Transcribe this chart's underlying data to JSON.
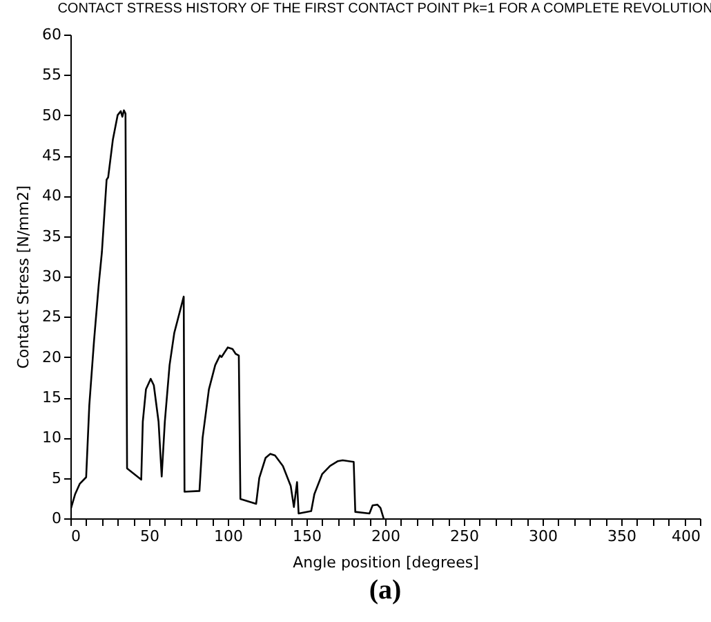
{
  "chart_data": {
    "type": "line",
    "title": "CONTACT STRESS HISTORY OF THE FIRST CONTACT POINT Pk=1 FOR A COMPLETE REVOLUTION",
    "xlabel": "Angle position [degrees]",
    "ylabel": "Contact Stress [N/mm2]",
    "annotations": [
      "(a)"
    ],
    "x": [
      0,
      3,
      6,
      10,
      12,
      15,
      18,
      20,
      23,
      24,
      27,
      30,
      32,
      33,
      34,
      35,
      36,
      45,
      46,
      48,
      51,
      53,
      56,
      58,
      60,
      63,
      66,
      70,
      72,
      72.5,
      82,
      84,
      88,
      92,
      95,
      96,
      100,
      103,
      105,
      107,
      108,
      118,
      120,
      124,
      127,
      130,
      135,
      140,
      142,
      144,
      145,
      153,
      155,
      160,
      165,
      170,
      173,
      180,
      181,
      190,
      192,
      195,
      197,
      199
    ],
    "series": [
      {
        "color": "#000000",
        "values": [
          1,
          3,
          4.3,
          5.1,
          14,
          22,
          29,
          33,
          42,
          42.3,
          47,
          50,
          50.5,
          49.8,
          50.6,
          50.2,
          6.2,
          4.8,
          12,
          16,
          17.3,
          16.5,
          12,
          5.2,
          12,
          19,
          23,
          26,
          27.5,
          3.3,
          3.4,
          10,
          16,
          19,
          20.2,
          20,
          21.2,
          21,
          20.4,
          20.2,
          2.4,
          1.8,
          5,
          7.5,
          8,
          7.8,
          6.5,
          4,
          1.4,
          4.5,
          0.6,
          0.9,
          3,
          5.5,
          6.5,
          7.1,
          7.2,
          7,
          0.8,
          0.6,
          1.6,
          1.7,
          1.3,
          0
        ]
      }
    ],
    "xlim": [
      0,
      400
    ],
    "ylim": [
      0,
      60
    ],
    "xticks": [
      0,
      {
        "value": 10,
        "label": null
      },
      {
        "value": 20,
        "label": null
      },
      {
        "value": 30,
        "label": null
      },
      {
        "value": 40,
        "label": null
      },
      50,
      {
        "value": 60,
        "label": null
      },
      {
        "value": 70,
        "label": null
      },
      {
        "value": 80,
        "label": null
      },
      {
        "value": 90,
        "label": null
      },
      100,
      {
        "value": 110,
        "label": null
      },
      {
        "value": 120,
        "label": null
      },
      {
        "value": 130,
        "label": null
      },
      {
        "value": 140,
        "label": null
      },
      150,
      {
        "value": 160,
        "label": null
      },
      {
        "value": 170,
        "label": null
      },
      {
        "value": 180,
        "label": null
      },
      {
        "value": 190,
        "label": null
      },
      200,
      {
        "value": 210,
        "label": null
      },
      {
        "value": 220,
        "label": null
      },
      {
        "value": 230,
        "label": null
      },
      {
        "value": 240,
        "label": null
      },
      250,
      {
        "value": 260,
        "label": null
      },
      {
        "value": 270,
        "label": null
      },
      {
        "value": 280,
        "label": null
      },
      {
        "value": 290,
        "label": null
      },
      300,
      {
        "value": 310,
        "label": null
      },
      {
        "value": 320,
        "label": null
      },
      {
        "value": 330,
        "label": null
      },
      {
        "value": 340,
        "label": null
      },
      350,
      {
        "value": 360,
        "label": null
      },
      {
        "value": 370,
        "label": null
      },
      {
        "value": 380,
        "label": null
      },
      {
        "value": 390,
        "label": null
      },
      400
    ],
    "yticks": [
      0,
      5,
      10,
      15,
      20,
      25,
      30,
      35,
      40,
      45,
      50,
      55,
      60
    ],
    "grid": false
  }
}
